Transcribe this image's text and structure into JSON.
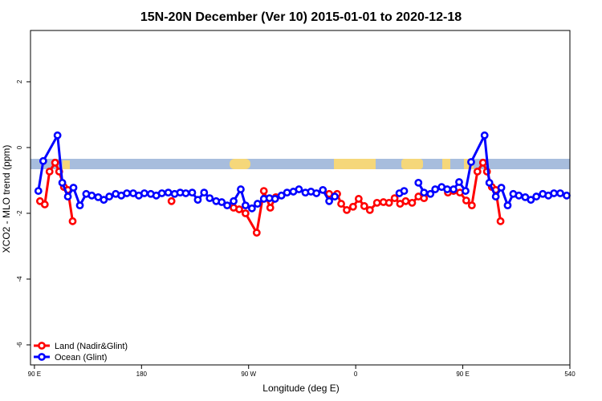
{
  "chart_data": {
    "type": "line",
    "title": "15N-20N December (Ver 10)   2015-01-01 to 2020-12-18",
    "x_label": "Longitude (deg E)",
    "y_label": "XCO2 - MLO trend (ppm)",
    "xlim": [
      86.7,
      540
    ],
    "ylim": [
      -6.61,
      3.56
    ],
    "xticks": [
      {
        "value": 90,
        "label": "90 E"
      },
      180,
      {
        "value": 270,
        "label": "90 W"
      },
      {
        "value": 360,
        "label": "0"
      },
      {
        "value": 450,
        "label": "90 E"
      },
      540
    ],
    "yticks": [
      -6,
      -4,
      -2,
      0,
      2
    ],
    "legend": "bottom-left",
    "series": [
      {
        "name": "Land (Nadir&Glint)",
        "color": "#ff0000",
        "x": [
          94.7,
          98.7,
          102.7,
          107.4,
          110.8,
          114.8,
          118.1,
          122.1,
          null,
          205.2,
          null,
          257.4,
          262.1,
          267.4,
          276.8,
          282.8,
          288.2,
          292.9,
          null,
          337.7,
          344.4,
          347.8,
          352.5,
          357.8,
          362.5,
          367.2,
          371.9,
          377.9,
          383.3,
          388.0,
          392.7,
          397.3,
          402.0,
          407.4,
          412.7,
          417.4,
          null,
          437.5,
          442.2,
          447.6,
          452.9,
          457.6,
          462.3,
          467.0,
          470.3,
          474.4,
          477.7,
          481.7
        ],
        "values": [
          -1.63,
          -1.73,
          -0.73,
          -0.46,
          -0.73,
          -1.2,
          -1.29,
          -2.24,
          null,
          -1.63,
          null,
          -1.83,
          -1.88,
          -2.0,
          -2.59,
          -1.32,
          -1.83,
          -1.51,
          null,
          -1.41,
          -1.41,
          -1.71,
          -1.9,
          -1.8,
          -1.56,
          -1.78,
          -1.9,
          -1.68,
          -1.66,
          -1.68,
          -1.54,
          -1.71,
          -1.63,
          -1.68,
          -1.49,
          -1.54,
          null,
          -1.37,
          -1.32,
          -1.37,
          -1.61,
          -1.76,
          -0.73,
          -0.46,
          -0.73,
          -1.2,
          -1.29,
          -2.24
        ]
      },
      {
        "name": "Ocean (Glint)",
        "color": "#0000ff",
        "x": [
          93.3,
          97.4,
          109.4,
          113.4,
          118.1,
          122.8,
          128.2,
          133.5,
          138.2,
          143.6,
          148.3,
          152.9,
          158.3,
          163.0,
          167.7,
          173.0,
          177.7,
          182.4,
          187.8,
          192.4,
          197.1,
          202.5,
          207.8,
          212.5,
          217.2,
          222.6,
          227.3,
          232.6,
          237.3,
          242.7,
          247.4,
          252.0,
          257.4,
          263.4,
          267.4,
          272.8,
          277.5,
          282.8,
          287.5,
          292.2,
          297.6,
          302.3,
          307.6,
          312.3,
          317.7,
          322.4,
          327.0,
          332.4,
          337.7,
          342.4,
          null,
          396.7,
          400.7,
          null,
          412.7,
          417.4,
          422.8,
          426.8,
          432.2,
          436.9,
          442.2,
          446.9,
          452.3,
          457.0,
          468.3,
          472.3,
          477.7,
          482.4,
          487.7,
          492.4,
          497.1,
          502.5,
          507.2,
          511.8,
          517.2,
          521.9,
          526.6,
          531.9,
          537.3
        ],
        "values": [
          -1.32,
          -0.41,
          0.37,
          -1.07,
          -1.49,
          -1.22,
          -1.76,
          -1.41,
          -1.46,
          -1.51,
          -1.59,
          -1.49,
          -1.41,
          -1.46,
          -1.39,
          -1.39,
          -1.46,
          -1.39,
          -1.41,
          -1.46,
          -1.39,
          -1.37,
          -1.41,
          -1.37,
          -1.39,
          -1.37,
          -1.59,
          -1.37,
          -1.54,
          -1.63,
          -1.66,
          -1.76,
          -1.63,
          -1.27,
          -1.76,
          -1.85,
          -1.71,
          -1.56,
          -1.54,
          -1.56,
          -1.46,
          -1.37,
          -1.34,
          -1.27,
          -1.37,
          -1.34,
          -1.39,
          -1.29,
          -1.63,
          -1.49,
          null,
          -1.39,
          -1.32,
          null,
          -1.07,
          -1.37,
          -1.41,
          -1.27,
          -1.2,
          -1.27,
          -1.27,
          -1.05,
          -1.32,
          -0.44,
          0.37,
          -1.07,
          -1.49,
          -1.22,
          -1.76,
          -1.41,
          -1.46,
          -1.51,
          -1.59,
          -1.49,
          -1.41,
          -1.46,
          -1.39,
          -1.39,
          -1.46
        ]
      }
    ]
  }
}
